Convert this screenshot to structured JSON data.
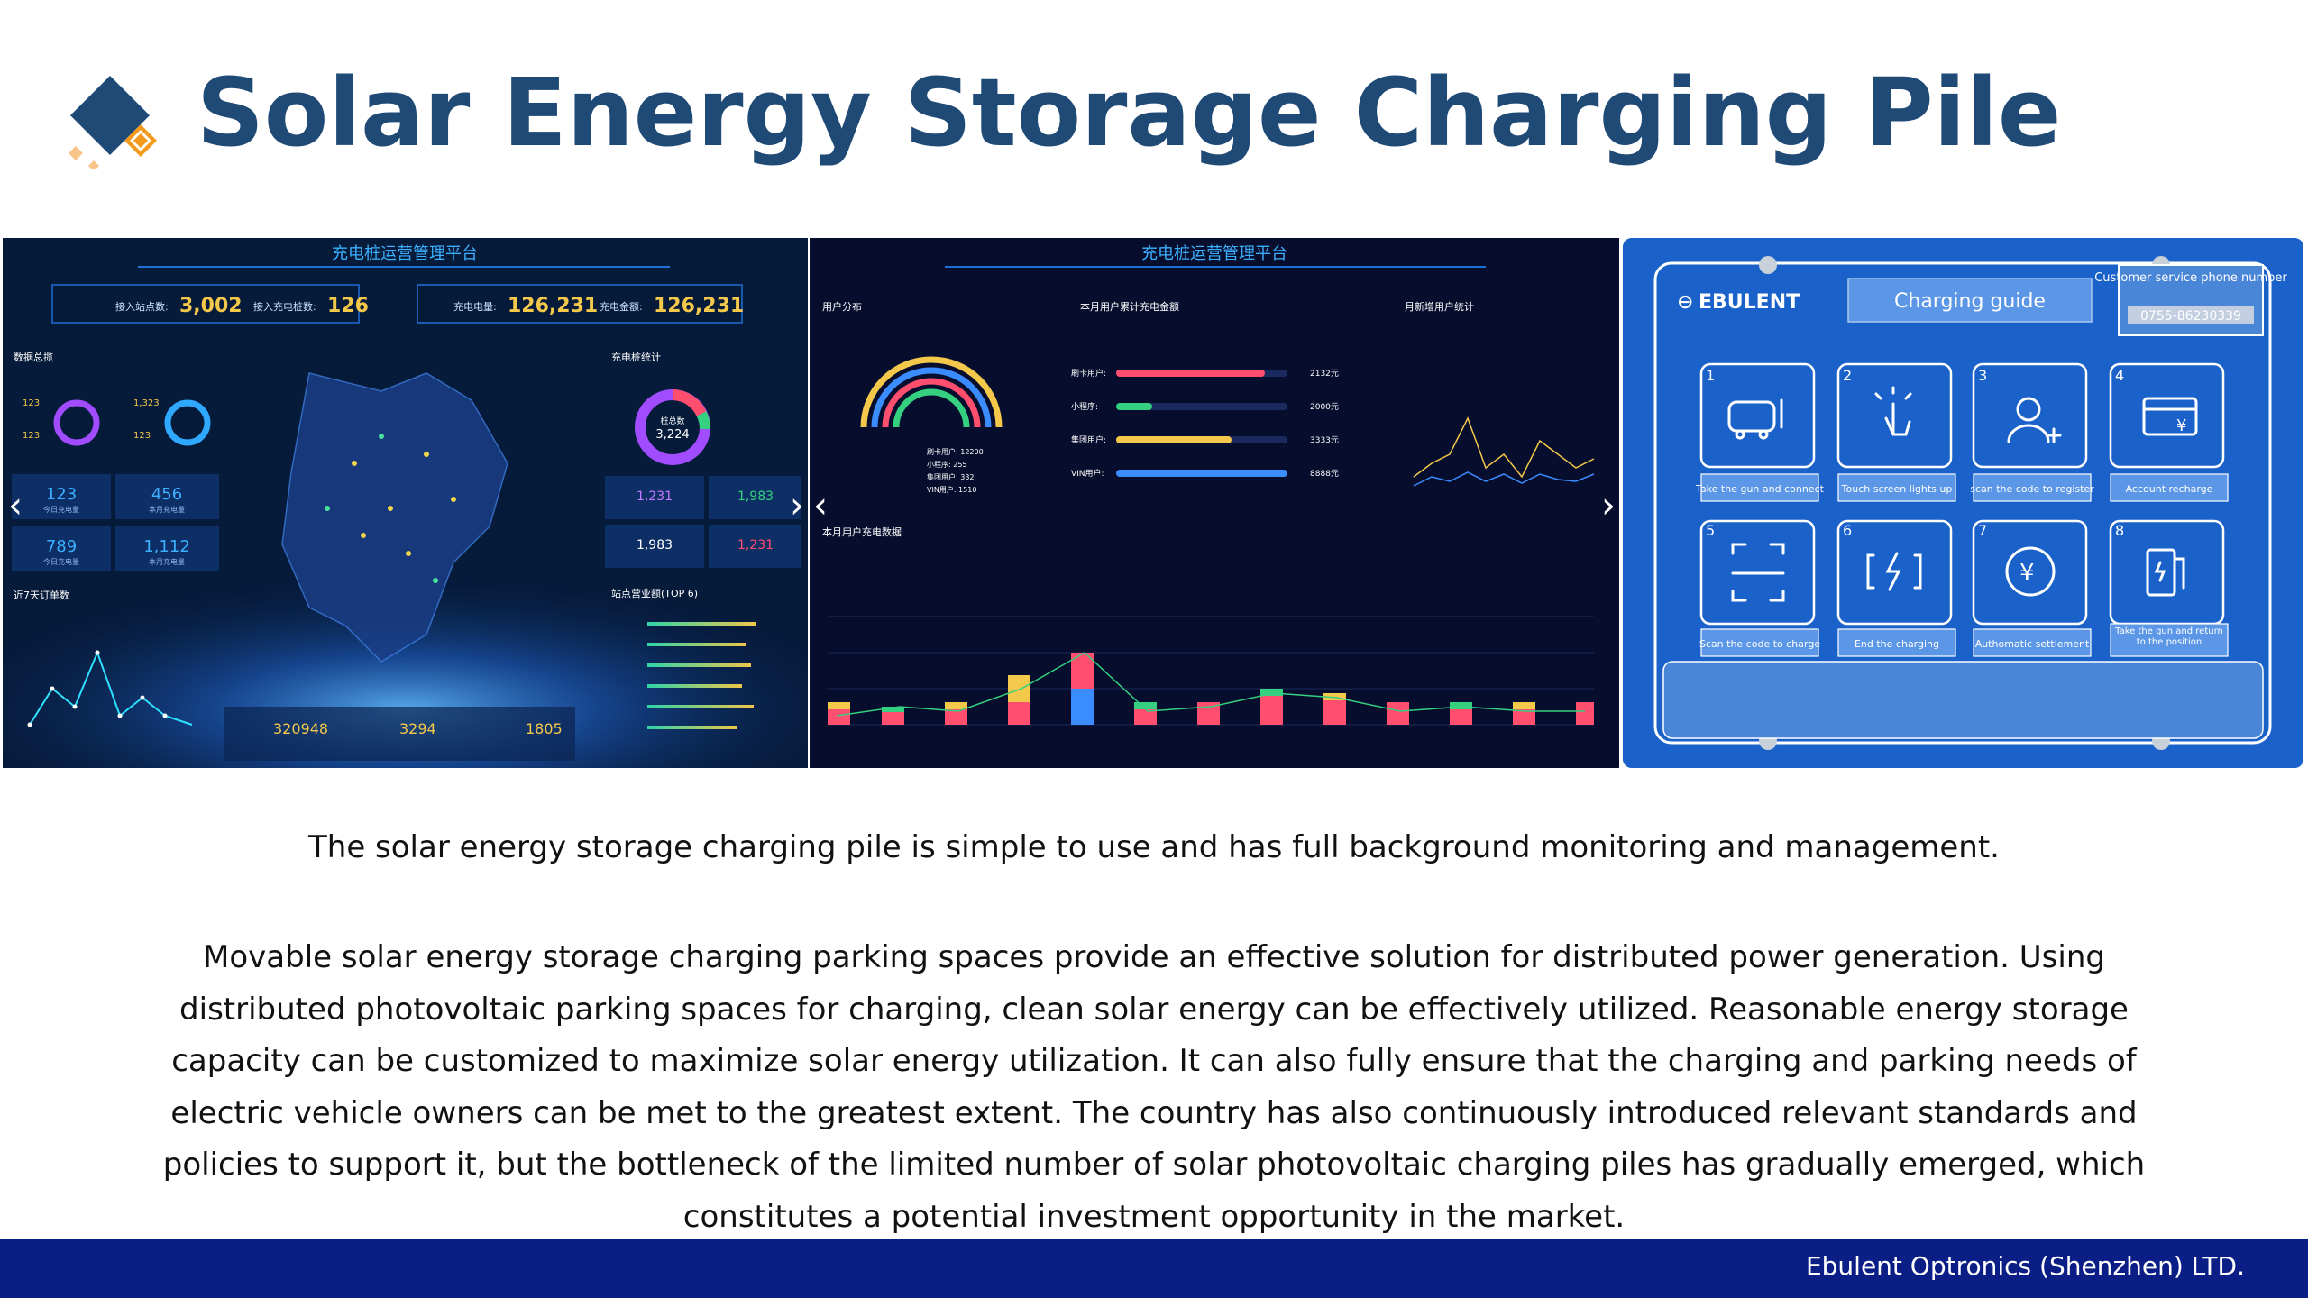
{
  "title": "Solar Energy Storage Charging Pile",
  "caption": "The solar energy storage charging pile is simple to use and has full background monitoring and management.",
  "paragraph": "Movable solar energy storage charging parking spaces provide an effective solution for distributed power generation. Using distributed photovoltaic parking spaces for charging, clean solar energy can be effectively utilized. Reasonable energy storage capacity can be customized to maximize solar energy utilization. It can also fully ensure that the charging and parking needs of electric vehicle owners can be met to the greatest extent. The country has also continuously introduced relevant standards and policies to support it, but the bottleneck of the limited number of solar photovoltaic charging piles has gradually emerged, which constitutes a potential investment opportunity in the market.",
  "footer": "Ebulent Optronics (Shenzhen) LTD.",
  "colors": {
    "title": "#1f4a76",
    "footer_bg": "#0b1e86",
    "logo_dark": "#1f4a76",
    "logo_accent": "#f39a1e",
    "guide_blue": "#1a62c9"
  },
  "dashboard1": {
    "header": "充电桩运营管理平台",
    "stats": [
      {
        "label": "接入站点数:",
        "value": "3,002"
      },
      {
        "label": "接入充电桩数:",
        "value": "126"
      },
      {
        "label": "充电电量:",
        "value": "126,231"
      },
      {
        "label": "充电金额:",
        "value": "126,231"
      }
    ],
    "left_section": "数据总揽",
    "left_values": [
      "123",
      "1,323",
      "123",
      "123"
    ],
    "tiles": [
      {
        "value": "123",
        "label": "今日充电量"
      },
      {
        "value": "456",
        "label": "本月充电量"
      },
      {
        "value": "789",
        "label": "今日充电量"
      },
      {
        "value": "1,112",
        "label": "本月充电量"
      }
    ],
    "order_section": "近7天订单数",
    "right_section": "充电桩统计",
    "donut_total_label": "桩总数",
    "donut_total": "3,224",
    "right_tiles": [
      "1,231",
      "1,983",
      "1,983",
      "1,231"
    ],
    "top_section": "站点营业额(TOP 6)",
    "bottom_stats": [
      "320948",
      "3294",
      "1805"
    ]
  },
  "dashboard2": {
    "header": "充电桩运营管理平台",
    "sections": [
      "用户分布",
      "本月用户累计充电金额",
      "月新增用户统计",
      "本月用户充电数据"
    ],
    "bars": [
      {
        "label": "刷卡用户:",
        "value": "2132元"
      },
      {
        "label": "小程序:",
        "value": "2000元"
      },
      {
        "label": "集团用户:",
        "value": "3333元"
      },
      {
        "label": "VIN用户:",
        "value": "8888元"
      }
    ],
    "users": [
      "刷卡用户: 12200",
      "小程序: 255",
      "集团用户: 332",
      "VIN用户: 1510"
    ]
  },
  "guide": {
    "brand": "EBULENT",
    "title": "Charging guide",
    "service_label": "Customer service phone number",
    "service_phone": "0755-86230339",
    "steps": [
      {
        "n": "1",
        "label": "Take the gun and connect",
        "icon": "car-icon"
      },
      {
        "n": "2",
        "label": "Touch screen lights up",
        "icon": "touch-icon"
      },
      {
        "n": "3",
        "label": "scan the code to register",
        "icon": "user-add-icon"
      },
      {
        "n": "4",
        "label": "Account recharge",
        "icon": "card-yuan-icon"
      },
      {
        "n": "5",
        "label": "Scan the code to charge",
        "icon": "scan-icon"
      },
      {
        "n": "6",
        "label": "End the charging",
        "icon": "battery-charge-icon"
      },
      {
        "n": "7",
        "label": "Authomatic settlement",
        "icon": "yuan-cycle-icon"
      },
      {
        "n": "8",
        "label": "Take the gun and return to the position",
        "icon": "fuel-gun-icon"
      }
    ]
  }
}
